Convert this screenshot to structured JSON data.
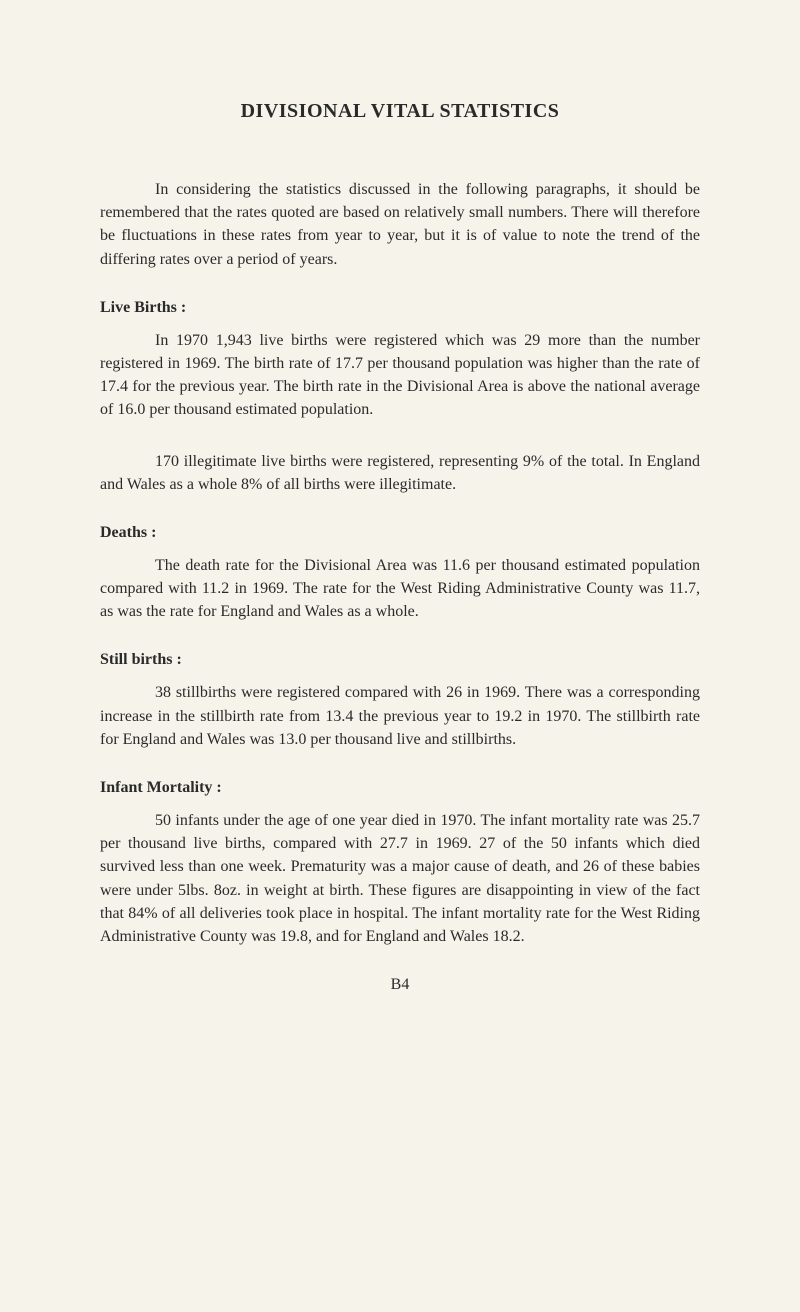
{
  "title": "DIVISIONAL VITAL STATISTICS",
  "intro": "In considering the statistics discussed in the following paragraphs, it should be remembered that the rates quoted are based on relatively small numbers. There will therefore be fluctuations in these rates from year to year, but it is of value to note the trend of the differing rates over a period of years.",
  "sections": {
    "liveBirths": {
      "heading": "Live Births :",
      "p1": "In 1970 1,943 live births were registered which was 29 more than the number registered in 1969. The birth rate of 17.7 per thousand population was higher than the rate of 17.4 for the previous year. The birth rate in the Divisional Area is above the national average of 16.0 per thousand estimated population.",
      "p2": "170 illegitimate live births were registered, representing 9% of the total. In England and Wales as a whole 8% of all births were illegitimate."
    },
    "deaths": {
      "heading": "Deaths :",
      "p1": "The death rate for the Divisional Area was 11.6 per thousand estimated population compared with 11.2 in 1969. The rate for the West Riding Administrative County was 11.7, as was the rate for England and Wales as a whole."
    },
    "stillBirths": {
      "heading": "Still births :",
      "p1": "38 stillbirths were registered compared with 26 in 1969. There was a corresponding increase in the stillbirth rate from 13.4 the previous year to 19.2 in 1970. The stillbirth rate for England and Wales was 13.0 per thousand live and stillbirths."
    },
    "infantMortality": {
      "heading": "Infant Mortality :",
      "p1": "50 infants under the age of one year died in 1970. The infant mortality rate was 25.7 per thousand live births, compared with 27.7 in 1969. 27 of the 50 infants which died survived less than one week. Prematurity was a major cause of death, and 26 of these babies were under 5lbs. 8oz. in weight at birth. These figures are disappointing in view of the fact that 84% of all deliveries took place in hospital. The infant mortality rate for the West Riding Administrative County was 19.8, and for England and Wales 18.2."
    }
  },
  "pageNumber": "B4",
  "colors": {
    "background": "#f5f3ea",
    "text": "#2a2a2a"
  },
  "typography": {
    "titleFontSize": 20,
    "bodyFontSize": 16,
    "lineHeight": 1.45,
    "textIndent": 55
  }
}
